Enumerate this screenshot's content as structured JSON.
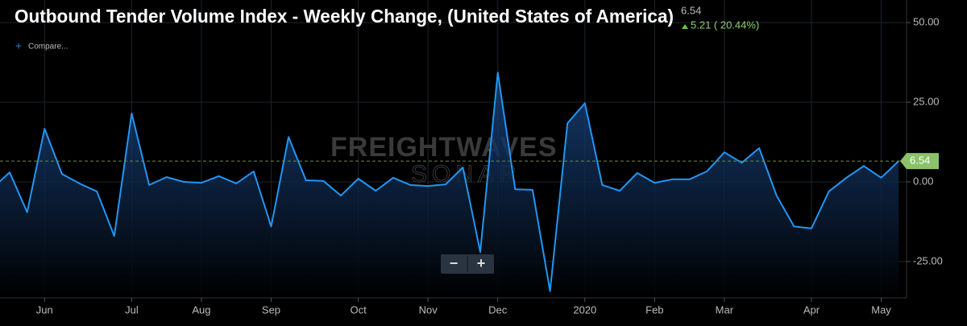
{
  "chart_data": {
    "type": "line",
    "title": "Outbound Tender Volume Index - Weekly Change, (United States of America)",
    "last_value": 6.54,
    "change": "5.21 ( 20.44%)",
    "compare": "Compare...",
    "watermark": "FREIGHTWAVES",
    "watermark_sub": "SONAR",
    "zoom_out": "−",
    "zoom_in": "+",
    "color": "#2196f3",
    "categories": [
      null,
      null,
      null,
      "Jun",
      null,
      null,
      null,
      null,
      "Jul",
      null,
      null,
      null,
      "Aug",
      null,
      null,
      null,
      "Sep",
      null,
      null,
      null,
      null,
      "Oct",
      null,
      null,
      null,
      "Nov",
      null,
      null,
      null,
      "Dec",
      null,
      null,
      null,
      null,
      "2020",
      null,
      null,
      null,
      "Feb",
      null,
      null,
      null,
      "Mar",
      null,
      null,
      null,
      null,
      "Apr",
      null,
      null,
      null,
      "May",
      null
    ],
    "values": [
      -2,
      3,
      -9.5,
      16.7,
      2.5,
      -0.5,
      -3,
      -17,
      21.5,
      -1,
      1.5,
      0,
      -0.3,
      1.8,
      -0.5,
      3.3,
      -14,
      14.1,
      0.5,
      0.3,
      -4.3,
      1,
      -2.8,
      1.3,
      -1,
      -1.3,
      -0.8,
      4.5,
      -22,
      34.3,
      -2.3,
      -2.5,
      -34.3,
      18.4,
      24.7,
      -1,
      -2.8,
      2.8,
      -0.3,
      0.8,
      0.8,
      3.3,
      9.3,
      6,
      10.6,
      -4.3,
      -14,
      -14.6,
      -3,
      1.3,
      5,
      1.3,
      6.54
    ],
    "ylim": [
      -36.4,
      57.1
    ],
    "yticks": [
      {
        "value": -25,
        "label": "-25.00"
      },
      {
        "value": 0,
        "label": "0.00"
      },
      {
        "value": 25,
        "label": "25.00"
      },
      {
        "value": 50,
        "label": "50.00"
      }
    ],
    "grid": true
  }
}
